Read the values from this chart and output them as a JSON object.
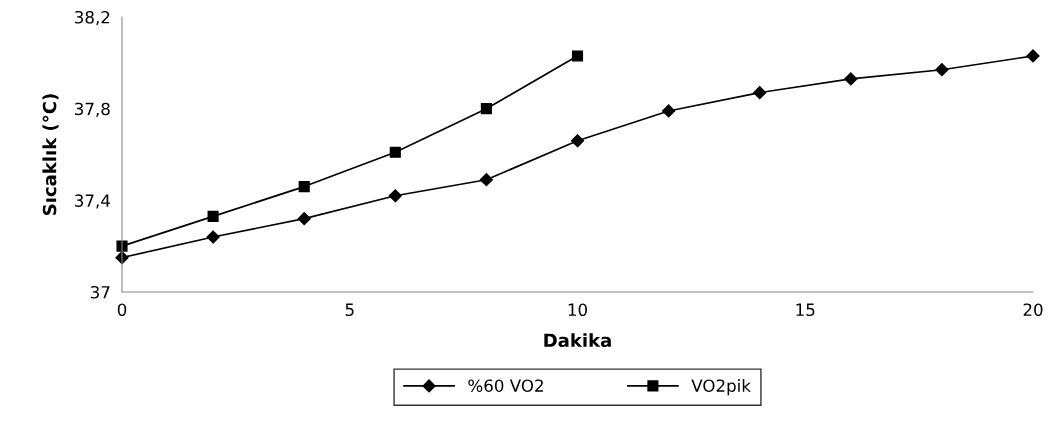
{
  "chart_data": {
    "type": "line",
    "xlabel": "Dakika",
    "ylabel": "Sıcaklık (°C)",
    "xlim": [
      0,
      20
    ],
    "xticks": [
      0,
      5,
      10,
      15,
      20
    ],
    "ylim": [
      37,
      38.2
    ],
    "yticks": [
      {
        "value": 37,
        "label": "37"
      },
      {
        "value": 37.4,
        "label": "37,4"
      },
      {
        "value": 37.8,
        "label": "37,8"
      },
      {
        "value": 38.2,
        "label": "38,2"
      }
    ],
    "series": [
      {
        "name": "%60 VO2",
        "color": "#000000",
        "marker": "diamond",
        "x": [
          0,
          2,
          4,
          6,
          8,
          10,
          12,
          14,
          16,
          18,
          20
        ],
        "values": [
          37.15,
          37.24,
          37.32,
          37.42,
          37.49,
          37.66,
          37.79,
          37.87,
          37.93,
          37.97,
          38.03
        ]
      },
      {
        "name": "VO2pik",
        "color": "#000000",
        "marker": "square",
        "x": [
          0,
          2,
          4,
          6,
          8,
          10
        ],
        "values": [
          37.2,
          37.33,
          37.46,
          37.61,
          37.8,
          38.03
        ]
      }
    ],
    "legend": "bottom",
    "grid": false,
    "line_style": "solid"
  }
}
